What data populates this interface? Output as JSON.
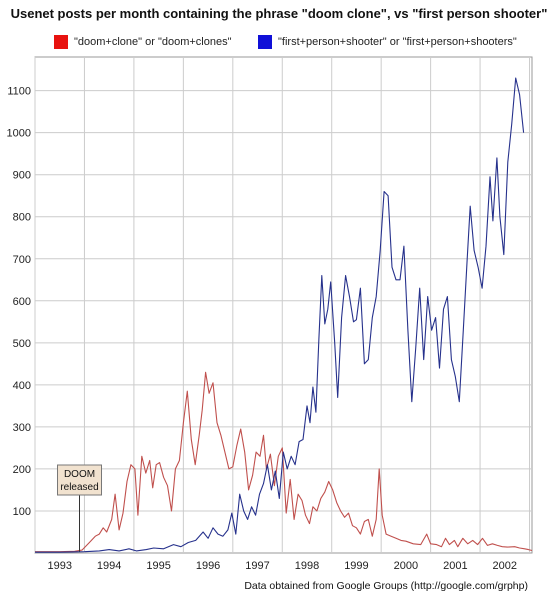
{
  "chart_data": {
    "type": "line",
    "title": "Usenet posts per month containing the phrase \"doom clone\", vs \"first person shooter\"",
    "xlabel": "",
    "ylabel": "",
    "source_note": "Data obtained from Google Groups (http://google.com/grphp)",
    "x_ticks": [
      "1993",
      "1994",
      "1995",
      "1996",
      "1997",
      "1998",
      "1999",
      "2000",
      "2001",
      "2002"
    ],
    "y_ticks": [
      100,
      200,
      300,
      400,
      500,
      600,
      700,
      800,
      900,
      1000,
      1100
    ],
    "xlim": [
      1992.5,
      2002.55
    ],
    "ylim": [
      0,
      1180
    ],
    "grid": true,
    "legend_position": "top",
    "annotation": {
      "text_line1": "DOOM",
      "text_line2": "released",
      "x": 1993.4,
      "y": 3
    },
    "series": [
      {
        "name": "\"doom+clone\" or \"doom+clones\"",
        "color": "#c0504d",
        "points": [
          [
            1992.5,
            3
          ],
          [
            1993.0,
            3
          ],
          [
            1993.3,
            4
          ],
          [
            1993.45,
            7
          ],
          [
            1993.6,
            25
          ],
          [
            1993.72,
            40
          ],
          [
            1993.8,
            45
          ],
          [
            1993.88,
            60
          ],
          [
            1993.95,
            50
          ],
          [
            1994.05,
            80
          ],
          [
            1994.12,
            140
          ],
          [
            1994.2,
            55
          ],
          [
            1994.28,
            95
          ],
          [
            1994.36,
            170
          ],
          [
            1994.44,
            210
          ],
          [
            1994.52,
            200
          ],
          [
            1994.58,
            90
          ],
          [
            1994.66,
            230
          ],
          [
            1994.74,
            190
          ],
          [
            1994.82,
            220
          ],
          [
            1994.88,
            155
          ],
          [
            1994.95,
            210
          ],
          [
            1995.02,
            215
          ],
          [
            1995.1,
            180
          ],
          [
            1995.18,
            160
          ],
          [
            1995.26,
            100
          ],
          [
            1995.34,
            200
          ],
          [
            1995.42,
            220
          ],
          [
            1995.5,
            310
          ],
          [
            1995.58,
            385
          ],
          [
            1995.66,
            270
          ],
          [
            1995.74,
            210
          ],
          [
            1995.82,
            280
          ],
          [
            1995.88,
            340
          ],
          [
            1995.95,
            430
          ],
          [
            1996.02,
            380
          ],
          [
            1996.1,
            405
          ],
          [
            1996.18,
            310
          ],
          [
            1996.26,
            280
          ],
          [
            1996.34,
            240
          ],
          [
            1996.42,
            200
          ],
          [
            1996.5,
            205
          ],
          [
            1996.58,
            255
          ],
          [
            1996.66,
            295
          ],
          [
            1996.74,
            240
          ],
          [
            1996.82,
            150
          ],
          [
            1996.9,
            185
          ],
          [
            1996.97,
            240
          ],
          [
            1997.05,
            230
          ],
          [
            1997.12,
            280
          ],
          [
            1997.18,
            200
          ],
          [
            1997.26,
            235
          ],
          [
            1997.34,
            160
          ],
          [
            1997.42,
            230
          ],
          [
            1997.5,
            250
          ],
          [
            1997.58,
            95
          ],
          [
            1997.66,
            175
          ],
          [
            1997.74,
            80
          ],
          [
            1997.82,
            140
          ],
          [
            1997.9,
            125
          ],
          [
            1997.97,
            90
          ],
          [
            1998.05,
            70
          ],
          [
            1998.12,
            110
          ],
          [
            1998.2,
            100
          ],
          [
            1998.28,
            130
          ],
          [
            1998.36,
            145
          ],
          [
            1998.44,
            170
          ],
          [
            1998.52,
            150
          ],
          [
            1998.6,
            120
          ],
          [
            1998.68,
            100
          ],
          [
            1998.76,
            85
          ],
          [
            1998.84,
            95
          ],
          [
            1998.92,
            65
          ],
          [
            1999.0,
            60
          ],
          [
            1999.08,
            45
          ],
          [
            1999.16,
            75
          ],
          [
            1999.24,
            80
          ],
          [
            1999.32,
            40
          ],
          [
            1999.4,
            80
          ],
          [
            1999.46,
            200
          ],
          [
            1999.52,
            90
          ],
          [
            1999.6,
            45
          ],
          [
            1999.7,
            40
          ],
          [
            1999.8,
            35
          ],
          [
            1999.9,
            30
          ],
          [
            2000.0,
            28
          ],
          [
            2000.15,
            22
          ],
          [
            2000.3,
            20
          ],
          [
            2000.42,
            45
          ],
          [
            2000.5,
            22
          ],
          [
            2000.62,
            20
          ],
          [
            2000.72,
            15
          ],
          [
            2000.8,
            35
          ],
          [
            2000.88,
            20
          ],
          [
            2000.98,
            30
          ],
          [
            2001.05,
            15
          ],
          [
            2001.15,
            35
          ],
          [
            2001.25,
            22
          ],
          [
            2001.35,
            30
          ],
          [
            2001.45,
            20
          ],
          [
            2001.55,
            35
          ],
          [
            2001.65,
            18
          ],
          [
            2001.75,
            22
          ],
          [
            2001.85,
            18
          ],
          [
            2001.95,
            15
          ],
          [
            2002.05,
            14
          ],
          [
            2002.2,
            15
          ],
          [
            2002.3,
            12
          ],
          [
            2002.4,
            10
          ],
          [
            2002.48,
            8
          ],
          [
            2002.55,
            6
          ]
        ]
      },
      {
        "name": "\"first+person+shooter\" or \"first+person+shooters\"",
        "color": "#26318c",
        "points": [
          [
            1992.5,
            2
          ],
          [
            1993.0,
            2
          ],
          [
            1993.5,
            3
          ],
          [
            1993.8,
            5
          ],
          [
            1994.0,
            8
          ],
          [
            1994.2,
            5
          ],
          [
            1994.4,
            10
          ],
          [
            1994.55,
            5
          ],
          [
            1994.75,
            8
          ],
          [
            1994.9,
            12
          ],
          [
            1995.1,
            10
          ],
          [
            1995.3,
            20
          ],
          [
            1995.45,
            15
          ],
          [
            1995.6,
            25
          ],
          [
            1995.75,
            30
          ],
          [
            1995.9,
            50
          ],
          [
            1996.0,
            35
          ],
          [
            1996.1,
            60
          ],
          [
            1996.2,
            45
          ],
          [
            1996.3,
            40
          ],
          [
            1996.4,
            55
          ],
          [
            1996.48,
            95
          ],
          [
            1996.56,
            45
          ],
          [
            1996.64,
            140
          ],
          [
            1996.72,
            100
          ],
          [
            1996.8,
            80
          ],
          [
            1996.88,
            110
          ],
          [
            1996.96,
            90
          ],
          [
            1997.04,
            140
          ],
          [
            1997.12,
            165
          ],
          [
            1997.2,
            210
          ],
          [
            1997.28,
            150
          ],
          [
            1997.36,
            195
          ],
          [
            1997.44,
            130
          ],
          [
            1997.52,
            240
          ],
          [
            1997.6,
            200
          ],
          [
            1997.68,
            230
          ],
          [
            1997.76,
            210
          ],
          [
            1997.84,
            265
          ],
          [
            1997.92,
            270
          ],
          [
            1998.0,
            350
          ],
          [
            1998.06,
            310
          ],
          [
            1998.12,
            395
          ],
          [
            1998.18,
            335
          ],
          [
            1998.24,
            510
          ],
          [
            1998.3,
            660
          ],
          [
            1998.36,
            545
          ],
          [
            1998.42,
            580
          ],
          [
            1998.48,
            645
          ],
          [
            1998.56,
            500
          ],
          [
            1998.62,
            370
          ],
          [
            1998.7,
            560
          ],
          [
            1998.78,
            660
          ],
          [
            1998.86,
            610
          ],
          [
            1998.94,
            550
          ],
          [
            1999.0,
            555
          ],
          [
            1999.08,
            630
          ],
          [
            1999.16,
            450
          ],
          [
            1999.24,
            460
          ],
          [
            1999.32,
            560
          ],
          [
            1999.4,
            610
          ],
          [
            1999.48,
            720
          ],
          [
            1999.56,
            860
          ],
          [
            1999.64,
            850
          ],
          [
            1999.72,
            680
          ],
          [
            1999.8,
            650
          ],
          [
            1999.88,
            650
          ],
          [
            1999.96,
            730
          ],
          [
            2000.04,
            530
          ],
          [
            2000.12,
            360
          ],
          [
            2000.2,
            490
          ],
          [
            2000.28,
            630
          ],
          [
            2000.36,
            460
          ],
          [
            2000.44,
            610
          ],
          [
            2000.52,
            530
          ],
          [
            2000.6,
            560
          ],
          [
            2000.68,
            440
          ],
          [
            2000.76,
            580
          ],
          [
            2000.84,
            610
          ],
          [
            2000.92,
            460
          ],
          [
            2001.0,
            420
          ],
          [
            2001.08,
            360
          ],
          [
            2001.16,
            530
          ],
          [
            2001.24,
            700
          ],
          [
            2001.3,
            825
          ],
          [
            2001.38,
            720
          ],
          [
            2001.46,
            680
          ],
          [
            2001.54,
            630
          ],
          [
            2001.62,
            730
          ],
          [
            2001.7,
            895
          ],
          [
            2001.76,
            790
          ],
          [
            2001.84,
            940
          ],
          [
            2001.9,
            800
          ],
          [
            2001.98,
            710
          ],
          [
            2002.06,
            930
          ],
          [
            2002.14,
            1020
          ],
          [
            2002.22,
            1130
          ],
          [
            2002.3,
            1090
          ],
          [
            2002.38,
            1000
          ]
        ]
      }
    ]
  }
}
